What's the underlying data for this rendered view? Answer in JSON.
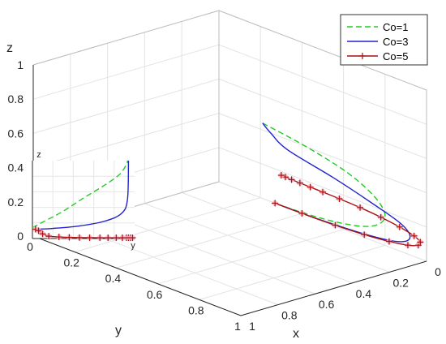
{
  "chart_data": {
    "type": "line",
    "subtype": "3d-line",
    "title": "",
    "xlabel": "x",
    "ylabel": "y",
    "zlabel": "z",
    "xlim": [
      0,
      1
    ],
    "ylim": [
      0,
      1
    ],
    "zlim": [
      0,
      1
    ],
    "grid": true,
    "legend_position": "top-right",
    "xticks": [
      "0",
      "0.2",
      "0.4",
      "0.6",
      "0.8",
      "1"
    ],
    "yticks": [
      "0",
      "0.2",
      "0.4",
      "0.6",
      "0.8",
      "1"
    ],
    "zticks": [
      "0",
      "0.2",
      "0.4",
      "0.6",
      "0.8",
      "1"
    ],
    "series": [
      {
        "name": "Co=1",
        "color": "#22cc22",
        "style": "dashed",
        "points": [
          [
            0.21,
            0.0,
            0.44
          ],
          [
            0.42,
            0.0,
            0.4
          ],
          [
            0.62,
            0.0,
            0.34
          ],
          [
            0.75,
            0.0,
            0.26
          ],
          [
            0.8,
            0.0,
            0.18
          ],
          [
            0.77,
            0.0,
            0.11
          ],
          [
            0.69,
            0.0,
            0.06
          ],
          [
            0.56,
            0.0,
            0.026
          ],
          [
            0.42,
            0.0,
            0.008
          ],
          [
            0.3,
            0.0,
            0.001
          ],
          [
            0.27,
            0.0,
            0.0
          ]
        ]
      },
      {
        "name": "Co=3",
        "color": "#2222cc",
        "style": "solid",
        "points": [
          [
            0.21,
            0.0,
            0.44
          ],
          [
            0.25,
            0.0,
            0.4
          ],
          [
            0.33,
            0.0,
            0.34
          ],
          [
            0.55,
            0.0,
            0.28
          ],
          [
            0.73,
            0.0,
            0.22
          ],
          [
            0.88,
            0.0,
            0.16
          ],
          [
            0.92,
            0.0,
            0.1
          ],
          [
            0.86,
            0.0,
            0.05
          ],
          [
            0.7,
            0.0,
            0.02
          ],
          [
            0.48,
            0.0,
            0.004
          ],
          [
            0.3,
            0.0,
            0.0
          ],
          [
            0.27,
            0.0,
            0.0
          ]
        ]
      },
      {
        "name": "Co=5",
        "color": "#aa1111",
        "style": "solid-plus-marker",
        "points": [
          [
            0.27,
            0.0,
            0.0
          ],
          [
            0.4,
            0.0,
            0.001
          ],
          [
            0.56,
            0.0,
            0.006
          ],
          [
            0.7,
            0.0,
            0.016
          ],
          [
            0.82,
            0.0,
            0.032
          ],
          [
            0.91,
            0.0,
            0.052
          ],
          [
            0.96,
            0.0,
            0.075
          ],
          [
            0.97,
            0.0,
            0.098
          ],
          [
            0.94,
            0.0,
            0.12
          ],
          [
            0.87,
            0.0,
            0.14
          ],
          [
            0.78,
            0.0,
            0.155
          ],
          [
            0.68,
            0.0,
            0.165
          ],
          [
            0.58,
            0.0,
            0.17
          ],
          [
            0.5,
            0.0,
            0.172
          ],
          [
            0.44,
            0.0,
            0.173
          ],
          [
            0.39,
            0.0,
            0.174
          ],
          [
            0.35,
            0.0,
            0.175
          ],
          [
            0.32,
            0.0,
            0.176
          ],
          [
            0.3,
            0.0,
            0.177
          ]
        ]
      }
    ],
    "inset": {
      "xlabel": "y",
      "ylabel": "z",
      "xticks": [],
      "yticks": [],
      "series": [
        {
          "name": "Co=1",
          "color": "#22cc22",
          "style": "dashed",
          "points": [
            [
              0.0,
              0.14
            ],
            [
              0.1,
              0.21
            ],
            [
              0.3,
              0.35
            ],
            [
              0.5,
              0.52
            ],
            [
              0.7,
              0.68
            ],
            [
              0.85,
              0.82
            ],
            [
              0.92,
              0.95
            ],
            [
              0.93,
              1.0
            ]
          ]
        },
        {
          "name": "Co=3",
          "color": "#2222cc",
          "style": "solid",
          "points": [
            [
              0.05,
              0.12
            ],
            [
              0.2,
              0.13
            ],
            [
              0.45,
              0.16
            ],
            [
              0.7,
              0.22
            ],
            [
              0.87,
              0.32
            ],
            [
              0.93,
              0.5
            ],
            [
              0.94,
              1.0
            ]
          ]
        },
        {
          "name": "Co=5",
          "color": "#aa1111",
          "style": "solid-plus-marker",
          "points": [
            [
              0.03,
              0.12
            ],
            [
              0.06,
              0.1
            ],
            [
              0.1,
              0.06
            ],
            [
              0.16,
              0.03
            ],
            [
              0.26,
              0.02
            ],
            [
              0.36,
              0.015
            ],
            [
              0.46,
              0.012
            ],
            [
              0.56,
              0.011
            ],
            [
              0.66,
              0.01
            ],
            [
              0.74,
              0.01
            ],
            [
              0.82,
              0.01
            ],
            [
              0.88,
              0.01
            ],
            [
              0.92,
              0.01
            ],
            [
              0.94,
              0.01
            ],
            [
              0.96,
              0.01
            ],
            [
              0.98,
              0.01
            ]
          ]
        }
      ]
    }
  }
}
